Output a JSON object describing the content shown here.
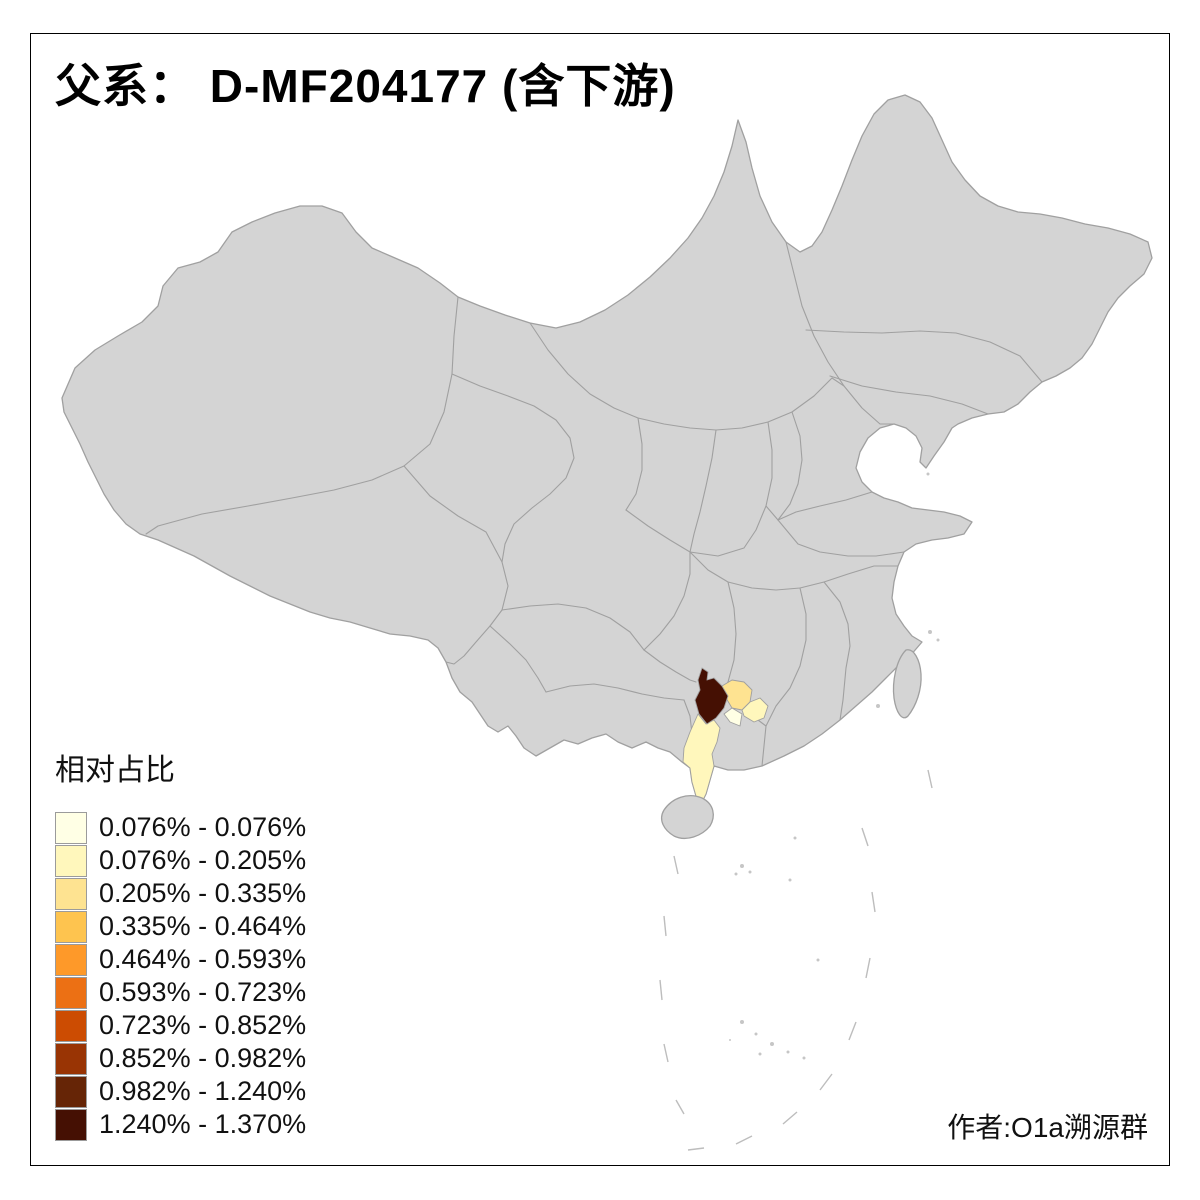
{
  "title": "父系： D-MF204177 (含下游)",
  "credit": "作者:O1a溯源群",
  "legend": {
    "title": "相对占比",
    "items": [
      {
        "label": "0.076% - 0.076%",
        "color": "#FFFFE5"
      },
      {
        "label": "0.076% - 0.205%",
        "color": "#FFF7BC"
      },
      {
        "label": "0.205% - 0.335%",
        "color": "#FEE391"
      },
      {
        "label": "0.335% - 0.464%",
        "color": "#FEC44F"
      },
      {
        "label": "0.464% - 0.593%",
        "color": "#FE9929"
      },
      {
        "label": "0.593% - 0.723%",
        "color": "#EC7014"
      },
      {
        "label": "0.723% - 0.852%",
        "color": "#CC4C02"
      },
      {
        "label": "0.852% - 0.982%",
        "color": "#993404"
      },
      {
        "label": "0.982% - 1.240%",
        "color": "#662506"
      },
      {
        "label": "1.240% - 1.370%",
        "color": "#451003"
      }
    ]
  },
  "map": {
    "base_fill": "#D4D4D4",
    "border_color": "#A0A0A0",
    "background": "#FFFFFF",
    "regions": [
      {
        "name": "core-dark",
        "color": "#451003"
      },
      {
        "name": "east-neighbor-light",
        "color": "#FEE391"
      },
      {
        "name": "far-east-neighbor-pale",
        "color": "#FFF7BC"
      },
      {
        "name": "southeast-neighbor-palest",
        "color": "#FFFFE5"
      },
      {
        "name": "south-peninsula-pale",
        "color": "#FFF7BC"
      }
    ]
  }
}
